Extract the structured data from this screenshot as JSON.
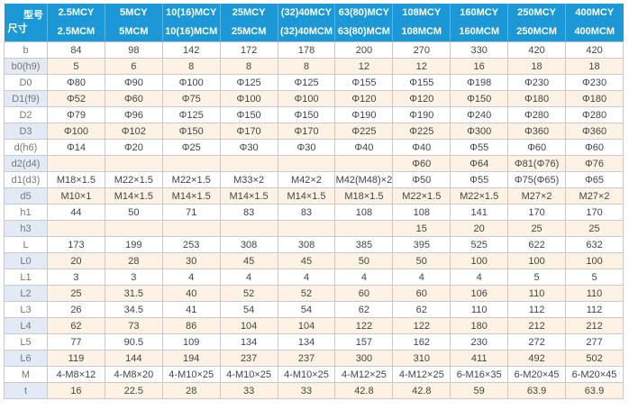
{
  "header": {
    "corner_top": "型号",
    "corner_bottom": "尺寸",
    "models": [
      {
        "top": "2.5MCY",
        "bottom": "2.5MCM"
      },
      {
        "top": "5MCY",
        "bottom": "5MCM"
      },
      {
        "top": "10(16)MCY",
        "bottom": "10(16)MCM"
      },
      {
        "top": "25MCY",
        "bottom": "25MCM"
      },
      {
        "top": "(32)40MCY",
        "bottom": "(32)40MCM"
      },
      {
        "top": "63(80)MCY",
        "bottom": "63(80)MCM"
      },
      {
        "top": "108MCY",
        "bottom": "108MCM"
      },
      {
        "top": "160MCY",
        "bottom": "160MCM"
      },
      {
        "top": "250MCY",
        "bottom": "250MCM"
      },
      {
        "top": "400MCY",
        "bottom": "400MCM"
      }
    ]
  },
  "rows": [
    {
      "label": "b",
      "values": [
        "84",
        "98",
        "142",
        "172",
        "178",
        "200",
        "270",
        "330",
        "420",
        "420"
      ]
    },
    {
      "label": "b0(h9)",
      "values": [
        "5",
        "6",
        "8",
        "8",
        "8",
        "12",
        "12",
        "16",
        "18",
        "18"
      ]
    },
    {
      "label": "D0",
      "values": [
        "Φ80",
        "Φ90",
        "Φ100",
        "Φ125",
        "Φ125",
        "Φ155",
        "Φ155",
        "Φ198",
        "Φ230",
        "Φ230"
      ]
    },
    {
      "label": "D1(f9)",
      "values": [
        "Φ52",
        "Φ60",
        "Φ75",
        "Φ100",
        "Φ100",
        "Φ120",
        "Φ120",
        "Φ150",
        "Φ180",
        "Φ180"
      ]
    },
    {
      "label": "D2",
      "values": [
        "Φ79",
        "Φ96",
        "Φ125",
        "Φ150",
        "Φ150",
        "Φ190",
        "Φ190",
        "Φ240",
        "Φ280",
        "Φ280"
      ]
    },
    {
      "label": "D3",
      "values": [
        "Φ100",
        "Φ102",
        "Φ150",
        "Φ170",
        "Φ170",
        "Φ225",
        "Φ225",
        "Φ300",
        "Φ360",
        "Φ360"
      ]
    },
    {
      "label": "d(h6)",
      "values": [
        "Φ14",
        "Φ20",
        "Φ25",
        "Φ30",
        "Φ30",
        "Φ40",
        "Φ40",
        "Φ55",
        "Φ60",
        "Φ60"
      ]
    },
    {
      "label": "d2(d4)",
      "values": [
        "",
        "",
        "",
        "",
        "",
        "",
        "Φ60",
        "Φ64",
        "Φ81(Φ76)",
        "Φ76"
      ]
    },
    {
      "label": "d1(d3)",
      "values": [
        "M18×1.5",
        "M22×1.5",
        "M22×1.5",
        "M33×2",
        "M42×2",
        "M42(M48)×2",
        "Φ50",
        "Φ55",
        "Φ75(Φ65)",
        "Φ65"
      ]
    },
    {
      "label": "d5",
      "values": [
        "M10×1",
        "M14×1.5",
        "M14×1.5",
        "M14×1.5",
        "M14×1.5",
        "M18×1.5",
        "M22×1.5",
        "M22×1.5",
        "M27×2",
        "M27×2"
      ]
    },
    {
      "label": "h1",
      "values": [
        "44",
        "50",
        "71",
        "83",
        "83",
        "108",
        "108",
        "141",
        "170",
        "170"
      ]
    },
    {
      "label": "h3",
      "values": [
        "",
        "",
        "",
        "",
        "",
        "",
        "15",
        "20",
        "25",
        "25"
      ]
    },
    {
      "label": "L",
      "values": [
        "173",
        "199",
        "253",
        "308",
        "308",
        "385",
        "395",
        "525",
        "622",
        "632"
      ]
    },
    {
      "label": "L0",
      "values": [
        "20",
        "28",
        "30",
        "45",
        "45",
        "50",
        "50",
        "100",
        "100",
        "100"
      ]
    },
    {
      "label": "L1",
      "values": [
        "3",
        "3",
        "4",
        "4",
        "4",
        "4",
        "4",
        "4",
        "5",
        "5"
      ]
    },
    {
      "label": "L2",
      "values": [
        "25",
        "31.5",
        "40",
        "52",
        "52",
        "60",
        "60",
        "106",
        "110",
        "110"
      ]
    },
    {
      "label": "L3",
      "values": [
        "26",
        "34.5",
        "41",
        "54",
        "54",
        "62",
        "62",
        "110",
        "112",
        "112"
      ]
    },
    {
      "label": "L4",
      "values": [
        "62",
        "73",
        "86",
        "104",
        "104",
        "122",
        "122",
        "180",
        "212",
        "212"
      ]
    },
    {
      "label": "L5",
      "values": [
        "77",
        "90.5",
        "109",
        "134",
        "134",
        "157",
        "162",
        "230",
        "272",
        "277"
      ]
    },
    {
      "label": "L6",
      "values": [
        "119",
        "144",
        "194",
        "237",
        "237",
        "300",
        "310",
        "411",
        "492",
        "502"
      ]
    },
    {
      "label": "M",
      "values": [
        "4-M8×12",
        "4-M8×20",
        "4-M10×25",
        "4-M10×25",
        "4-M10×25",
        "4-M12×25",
        "4-M12×25",
        "6-M16×35",
        "6-M20×45",
        "6-M20×45"
      ]
    },
    {
      "label": "t",
      "values": [
        "16",
        "22.5",
        "28",
        "33",
        "33",
        "42.8",
        "42.8",
        "59",
        "63.9",
        "63.9"
      ]
    }
  ]
}
